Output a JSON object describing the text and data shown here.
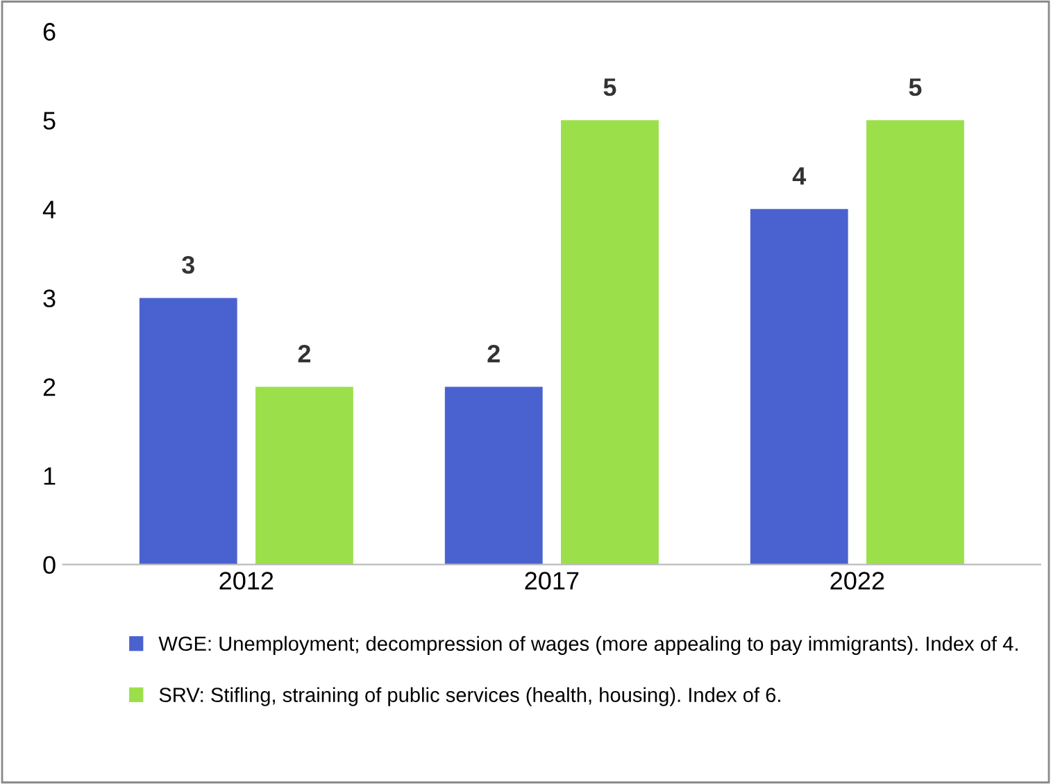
{
  "chart_data": {
    "type": "bar",
    "categories": [
      "2012",
      "2017",
      "2022"
    ],
    "series": [
      {
        "name": "WGE: Unemployment; decompression of wages (more appealing to pay immigrants). Index of 4.",
        "color": "#4a62d0",
        "values": [
          3,
          2,
          4
        ]
      },
      {
        "name": "SRV: Stifling, straining of public services (health, housing). Index of 6.",
        "color": "#9be04a",
        "values": [
          2,
          5,
          5
        ]
      }
    ],
    "ylim": [
      0,
      6
    ],
    "yticks": [
      0,
      1,
      2,
      3,
      4,
      5,
      6
    ],
    "grid": false,
    "legend": "bottom",
    "data_labels": true
  }
}
